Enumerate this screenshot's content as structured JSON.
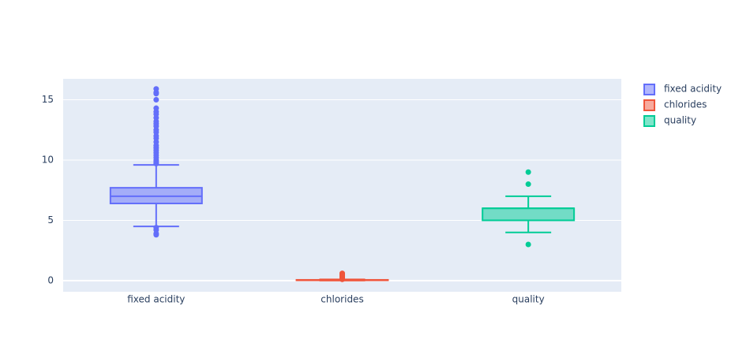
{
  "chart_data": {
    "type": "box",
    "ylim": [
      -0.92,
      16.73
    ],
    "yticks": [
      0,
      5,
      10,
      15
    ],
    "grid": true,
    "legend": "top-right",
    "series": [
      {
        "name": "fixed acidity",
        "color": "#636efa",
        "lower_whisker": 4.5,
        "q1": 6.4,
        "median": 7.0,
        "q3": 7.7,
        "upper_whisker": 9.6,
        "outliers": [
          3.8,
          3.9,
          4.2,
          4.4,
          9.7,
          9.8,
          9.9,
          10.0,
          10.2,
          10.4,
          10.6,
          10.8,
          11.0,
          11.2,
          11.5,
          11.8,
          12.0,
          12.3,
          12.5,
          12.8,
          13.0,
          13.2,
          13.5,
          13.8,
          14.0,
          14.3,
          15.0,
          15.5,
          15.6,
          15.9
        ]
      },
      {
        "name": "chlorides",
        "color": "#EF553B",
        "lower_whisker": 0.009,
        "q1": 0.038,
        "median": 0.047,
        "q3": 0.065,
        "upper_whisker": 0.105,
        "outliers": [
          0.11,
          0.15,
          0.2,
          0.25,
          0.3,
          0.35,
          0.4,
          0.45,
          0.5,
          0.55,
          0.611
        ]
      },
      {
        "name": "quality",
        "color": "#00cc96",
        "lower_whisker": 4,
        "q1": 5,
        "median": 6,
        "q3": 6,
        "upper_whisker": 7,
        "outliers": [
          3,
          8,
          9
        ]
      }
    ]
  }
}
